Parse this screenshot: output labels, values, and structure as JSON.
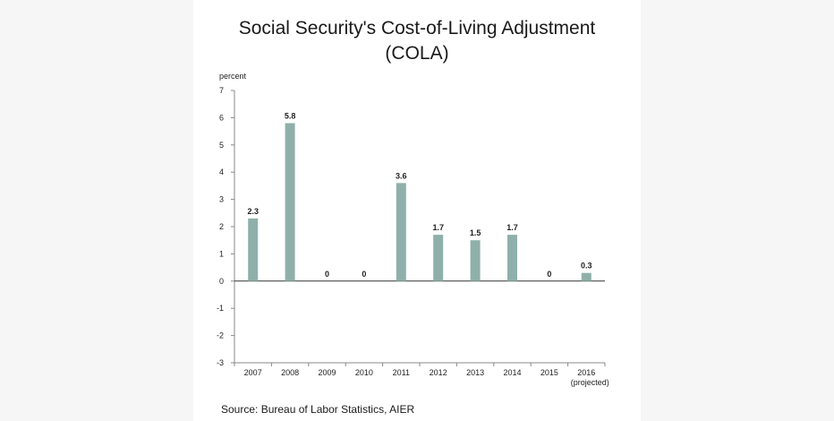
{
  "title_line1": "Social Security's Cost-of-Living Adjustment",
  "title_line2": "(COLA)",
  "source": "Source:  Bureau of Labor Statistics, AIER",
  "colors": {
    "bar": "#8fb0aa",
    "axis": "#888888",
    "text": "#222222"
  },
  "chart_data": {
    "type": "bar",
    "ylabel": "percent",
    "ylim": [
      -3,
      7
    ],
    "yticks": [
      "7",
      "6",
      "5",
      "4",
      "3",
      "2",
      "1",
      "0",
      "-1",
      "-2",
      "-3"
    ],
    "categories": [
      "2007",
      "2008",
      "2009",
      "2010",
      "2011",
      "2012",
      "2013",
      "2014",
      "2015",
      "2016"
    ],
    "category_sublabels": [
      "",
      "",
      "",
      "",
      "",
      "",
      "",
      "",
      "",
      "(projected)"
    ],
    "values": [
      2.3,
      5.8,
      0,
      0,
      3.6,
      1.7,
      1.5,
      1.7,
      0,
      0.3
    ],
    "value_labels": [
      "2.3",
      "5.8",
      "0",
      "0",
      "3.6",
      "1.7",
      "1.5",
      "1.7",
      "0",
      "0.3"
    ],
    "grid": false,
    "legend": "none"
  }
}
